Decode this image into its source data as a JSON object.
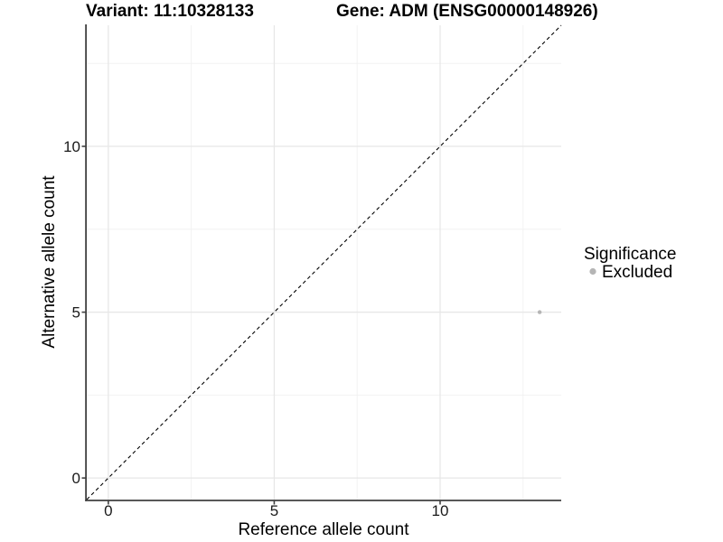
{
  "style": {
    "background": "#ffffff",
    "axis_line_color": "#414141",
    "tick_color": "#414141",
    "major_grid_color": "#e7e7e7",
    "minor_grid_color": "#f2f2f2",
    "identity_line_color": "#000000",
    "point_color": "#b5b5b5",
    "text_color": "#000000"
  },
  "chart_data": {
    "type": "scatter",
    "title_left": "Variant: 11:10328133",
    "title_right": "Gene: ADM (ENSG00000148926)",
    "xlabel": "Reference allele count",
    "ylabel": "Alternative allele count",
    "xlim": [
      -0.65,
      13.65
    ],
    "ylim": [
      -0.65,
      13.65
    ],
    "x_ticks": [
      0,
      5,
      10
    ],
    "y_ticks": [
      0,
      5,
      10
    ],
    "minor_grid": [
      2.5,
      7.5,
      12.5
    ],
    "grid": "major and minor, light gray on white",
    "identity_line": {
      "style": "dashed",
      "slope": 1,
      "intercept": 0
    },
    "series": [
      {
        "name": "Excluded",
        "color": "#b5b5b5",
        "point_radius": 2.2,
        "points": [
          {
            "x": 13,
            "y": 5
          }
        ]
      }
    ],
    "legend": {
      "title": "Significance",
      "position": "right",
      "items": [
        {
          "label": "Excluded",
          "color": "#b5b5b5"
        }
      ]
    }
  }
}
